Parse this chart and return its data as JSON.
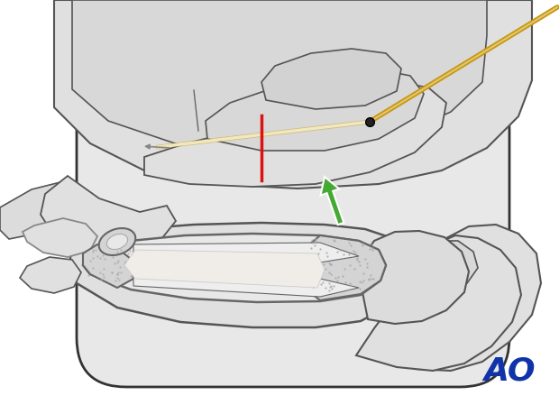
{
  "bg_color": "#ffffff",
  "drape_fill": "#e8e8e8",
  "drape_edge": "#333333",
  "skin_light": "#e0e0e0",
  "skin_mid": "#d0d0d0",
  "skin_dark": "#c0c0c0",
  "skin_edge": "#555555",
  "bone_outer": "#e8e8e8",
  "bone_edge": "#666666",
  "cancellous": "#d4d4d4",
  "canal_fill": "#f0ece8",
  "wire_gold": "#c8960a",
  "wire_cream": "#f0e8c0",
  "wire_tip_dark": "#222222",
  "red_color": "#dd1111",
  "green_color": "#44aa33",
  "ao_color": "#1133aa",
  "ao_text": "AO"
}
